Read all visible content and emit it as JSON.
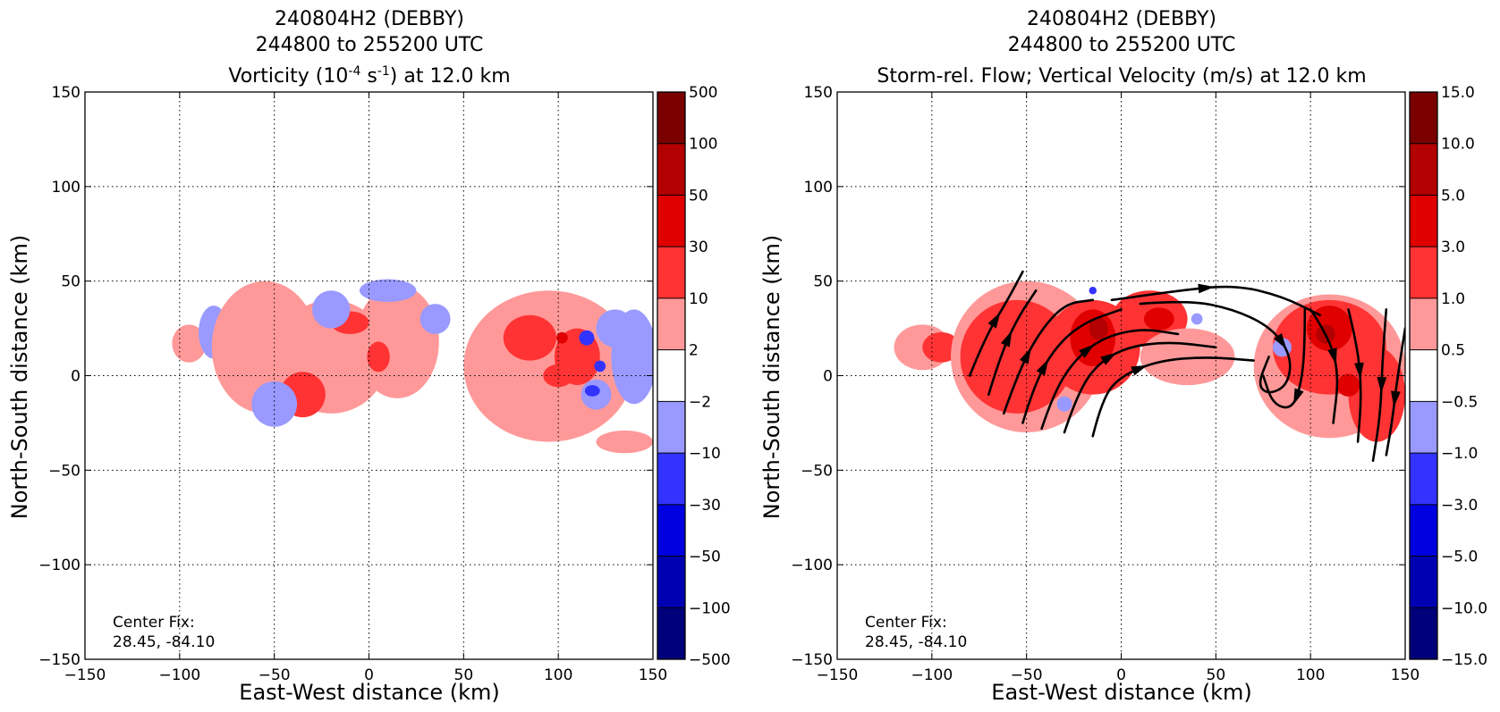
{
  "chart_data": [
    {
      "type": "heatmap",
      "title_lines": [
        "240804H2 (DEBBY)",
        "244800 to 255200 UTC",
        "Vorticity (10^-4 s^-1) at 12.0 km"
      ],
      "title": {
        "line1": "240804H2 (DEBBY)",
        "line2": "244800 to 255200 UTC",
        "line3_pre": "Vorticity (10",
        "line3_sup1": "-4",
        "line3_mid": " s",
        "line3_sup2": "-1",
        "line3_post": ") at 12.0 km"
      },
      "xlabel": "East-West distance (km)",
      "ylabel": "North-South distance (km)",
      "xlim": [
        -150,
        150
      ],
      "ylim": [
        -150,
        150
      ],
      "xticks": [
        "−150",
        "−100",
        "−50",
        "0",
        "50",
        "100",
        "150"
      ],
      "yticks": [
        "150",
        "100",
        "50",
        "0",
        "−50",
        "−100",
        "−150"
      ],
      "grid": true,
      "annotation": [
        "Center Fix:",
        "28.45, -84.10"
      ],
      "colorbar": {
        "labels": [
          "500",
          "100",
          "50",
          "30",
          "10",
          "2",
          "−2",
          "−10",
          "−30",
          "−50",
          "−100",
          "−500"
        ],
        "colors": [
          "#7a0000",
          "#b30000",
          "#e00000",
          "#ff3333",
          "#ff9999",
          "#ffffff",
          "#9999ff",
          "#3333ff",
          "#0000e0",
          "#0000b3",
          "#00007a"
        ]
      },
      "regions": [
        {
          "cls": 4,
          "x": -95,
          "y": 17,
          "rx": 9,
          "ry": 10
        },
        {
          "cls": 6,
          "x": -82,
          "y": 23,
          "rx": 8,
          "ry": 14
        },
        {
          "cls": 4,
          "x": -55,
          "y": 15,
          "rx": 28,
          "ry": 35
        },
        {
          "cls": 4,
          "x": -20,
          "y": 10,
          "rx": 30,
          "ry": 30
        },
        {
          "cls": 4,
          "x": 15,
          "y": 18,
          "rx": 22,
          "ry": 30
        },
        {
          "cls": 3,
          "x": -35,
          "y": -10,
          "rx": 12,
          "ry": 12
        },
        {
          "cls": 3,
          "x": -10,
          "y": 28,
          "rx": 10,
          "ry": 6
        },
        {
          "cls": 3,
          "x": 5,
          "y": 10,
          "rx": 6,
          "ry": 8
        },
        {
          "cls": 6,
          "x": -20,
          "y": 35,
          "rx": 10,
          "ry": 10
        },
        {
          "cls": 6,
          "x": -50,
          "y": -15,
          "rx": 12,
          "ry": 12
        },
        {
          "cls": 6,
          "x": 10,
          "y": 45,
          "rx": 15,
          "ry": 6
        },
        {
          "cls": 6,
          "x": 35,
          "y": 30,
          "rx": 8,
          "ry": 8
        },
        {
          "cls": 4,
          "x": 95,
          "y": 5,
          "rx": 45,
          "ry": 40
        },
        {
          "cls": 3,
          "x": 85,
          "y": 20,
          "rx": 14,
          "ry": 12
        },
        {
          "cls": 3,
          "x": 110,
          "y": 10,
          "rx": 12,
          "ry": 15
        },
        {
          "cls": 3,
          "x": 100,
          "y": 0,
          "rx": 8,
          "ry": 6
        },
        {
          "cls": 2,
          "x": 102,
          "y": 20,
          "rx": 3,
          "ry": 3
        },
        {
          "cls": 6,
          "x": 140,
          "y": 10,
          "rx": 12,
          "ry": 25
        },
        {
          "cls": 6,
          "x": 130,
          "y": 25,
          "rx": 10,
          "ry": 10
        },
        {
          "cls": 6,
          "x": 120,
          "y": -10,
          "rx": 8,
          "ry": 8
        },
        {
          "cls": 7,
          "x": 115,
          "y": 20,
          "rx": 4,
          "ry": 4
        },
        {
          "cls": 7,
          "x": 122,
          "y": 5,
          "rx": 3,
          "ry": 3
        },
        {
          "cls": 7,
          "x": 118,
          "y": -8,
          "rx": 4,
          "ry": 3
        },
        {
          "cls": 4,
          "x": 135,
          "y": -35,
          "rx": 15,
          "ry": 6
        }
      ]
    },
    {
      "type": "heatmap",
      "title_lines": [
        "240804H2 (DEBBY)",
        "244800 to 255200 UTC",
        "Storm-rel. Flow; Vertical Velocity (m/s) at 12.0 km"
      ],
      "title": {
        "line1": "240804H2 (DEBBY)",
        "line2": "244800 to 255200 UTC",
        "line3": "Storm-rel. Flow; Vertical Velocity (m/s) at 12.0 km"
      },
      "xlabel": "East-West distance (km)",
      "ylabel": "North-South distance (km)",
      "xlim": [
        -150,
        150
      ],
      "ylim": [
        -150,
        150
      ],
      "xticks": [
        "−150",
        "−100",
        "−50",
        "0",
        "50",
        "100",
        "150"
      ],
      "yticks": [
        "150",
        "100",
        "50",
        "0",
        "−50",
        "−100",
        "−150"
      ],
      "grid": true,
      "annotation": [
        "Center Fix:",
        "28.45, -84.10"
      ],
      "colorbar": {
        "labels": [
          "15.0",
          "10.0",
          "5.0",
          "3.0",
          "1.0",
          "0.5",
          "−0.5",
          "−1.0",
          "−3.0",
          "−5.0",
          "−10.0",
          "−15.0"
        ],
        "colors": [
          "#7a0000",
          "#b30000",
          "#e00000",
          "#ff3333",
          "#ff9999",
          "#ffffff",
          "#9999ff",
          "#3333ff",
          "#0000e0",
          "#0000b3",
          "#00007a"
        ]
      },
      "regions": [
        {
          "cls": 4,
          "x": -105,
          "y": 15,
          "rx": 15,
          "ry": 12
        },
        {
          "cls": 3,
          "x": -95,
          "y": 15,
          "rx": 10,
          "ry": 8
        },
        {
          "cls": 4,
          "x": -50,
          "y": 10,
          "rx": 40,
          "ry": 40
        },
        {
          "cls": 3,
          "x": -55,
          "y": 10,
          "rx": 30,
          "ry": 30
        },
        {
          "cls": 3,
          "x": -15,
          "y": 15,
          "rx": 25,
          "ry": 25
        },
        {
          "cls": 2,
          "x": -15,
          "y": 20,
          "rx": 12,
          "ry": 15
        },
        {
          "cls": 1,
          "x": -12,
          "y": 25,
          "rx": 5,
          "ry": 6
        },
        {
          "cls": 3,
          "x": 15,
          "y": 30,
          "rx": 20,
          "ry": 15
        },
        {
          "cls": 2,
          "x": 20,
          "y": 30,
          "rx": 8,
          "ry": 6
        },
        {
          "cls": 4,
          "x": 35,
          "y": 10,
          "rx": 25,
          "ry": 15
        },
        {
          "cls": 4,
          "x": 110,
          "y": 5,
          "rx": 40,
          "ry": 38
        },
        {
          "cls": 3,
          "x": 110,
          "y": 15,
          "rx": 30,
          "ry": 25
        },
        {
          "cls": 2,
          "x": 110,
          "y": 25,
          "rx": 12,
          "ry": 12
        },
        {
          "cls": 1,
          "x": 108,
          "y": 22,
          "rx": 5,
          "ry": 5
        },
        {
          "cls": 3,
          "x": 135,
          "y": -10,
          "rx": 15,
          "ry": 25
        },
        {
          "cls": 2,
          "x": 120,
          "y": -5,
          "rx": 6,
          "ry": 6
        },
        {
          "cls": 6,
          "x": -30,
          "y": -15,
          "rx": 4,
          "ry": 4
        },
        {
          "cls": 6,
          "x": 40,
          "y": 30,
          "rx": 3,
          "ry": 3
        },
        {
          "cls": 6,
          "x": 85,
          "y": 15,
          "rx": 5,
          "ry": 5
        },
        {
          "cls": 7,
          "x": -15,
          "y": 45,
          "rx": 2,
          "ry": 2
        }
      ],
      "streamlines": [
        [
          [
            -80,
            0
          ],
          [
            -72,
            20
          ],
          [
            -60,
            40
          ],
          [
            -52,
            55
          ]
        ],
        [
          [
            -70,
            -10
          ],
          [
            -64,
            10
          ],
          [
            -55,
            30
          ],
          [
            -45,
            45
          ]
        ],
        [
          [
            -62,
            -20
          ],
          [
            -55,
            0
          ],
          [
            -44,
            22
          ],
          [
            -30,
            38
          ],
          [
            -15,
            40
          ]
        ],
        [
          [
            -52,
            -25
          ],
          [
            -46,
            -5
          ],
          [
            -35,
            15
          ],
          [
            -20,
            28
          ],
          [
            0,
            35
          ]
        ],
        [
          [
            -42,
            -28
          ],
          [
            -36,
            -10
          ],
          [
            -25,
            8
          ],
          [
            -10,
            20
          ],
          [
            10,
            25
          ],
          [
            30,
            22
          ]
        ],
        [
          [
            -30,
            -30
          ],
          [
            -24,
            -12
          ],
          [
            -14,
            5
          ],
          [
            2,
            15
          ],
          [
            25,
            18
          ],
          [
            50,
            15
          ]
        ],
        [
          [
            -15,
            -32
          ],
          [
            -10,
            -12
          ],
          [
            0,
            0
          ],
          [
            20,
            8
          ],
          [
            45,
            10
          ],
          [
            70,
            8
          ]
        ],
        [
          [
            10,
            38
          ],
          [
            35,
            40
          ],
          [
            60,
            35
          ],
          [
            80,
            25
          ],
          [
            90,
            10
          ],
          [
            88,
            -5
          ],
          [
            78,
            -10
          ],
          [
            72,
            -5
          ],
          [
            78,
            10
          ]
        ],
        [
          [
            -5,
            40
          ],
          [
            30,
            45
          ],
          [
            60,
            48
          ],
          [
            85,
            42
          ],
          [
            105,
            32
          ]
        ],
        [
          [
            100,
            35
          ],
          [
            110,
            20
          ],
          [
            115,
            0
          ],
          [
            112,
            -25
          ]
        ],
        [
          [
            120,
            35
          ],
          [
            125,
            15
          ],
          [
            127,
            -10
          ],
          [
            125,
            -35
          ]
        ],
        [
          [
            140,
            35
          ],
          [
            138,
            10
          ],
          [
            137,
            -20
          ],
          [
            133,
            -45
          ]
        ],
        [
          [
            150,
            25
          ],
          [
            146,
            0
          ],
          [
            143,
            -25
          ],
          [
            140,
            -42
          ]
        ],
        [
          [
            97,
            35
          ],
          [
            97,
            15
          ],
          [
            95,
            -5
          ],
          [
            90,
            -18
          ],
          [
            80,
            -15
          ],
          [
            75,
            0
          ]
        ]
      ]
    }
  ]
}
